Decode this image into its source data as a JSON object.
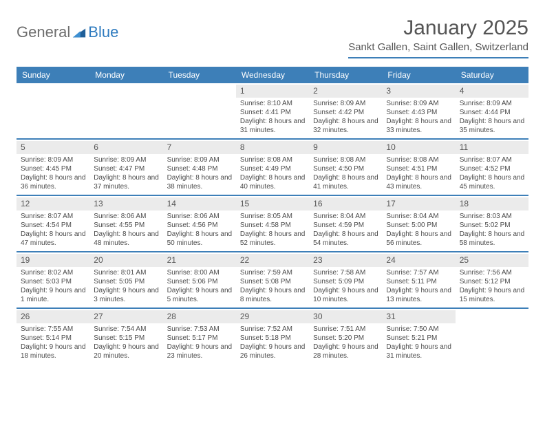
{
  "brand": {
    "part1": "General",
    "part2": "Blue"
  },
  "title": "January 2025",
  "location": "Sankt Gallen, Saint Gallen, Switzerland",
  "accent_color": "#3d7fb8",
  "day_bar_color": "#ebebeb",
  "bg_color": "#ffffff",
  "dow": [
    "Sunday",
    "Monday",
    "Tuesday",
    "Wednesday",
    "Thursday",
    "Friday",
    "Saturday"
  ],
  "weeks": [
    [
      null,
      null,
      null,
      {
        "n": "1",
        "sr": "8:10 AM",
        "ss": "4:41 PM",
        "dl": "8 hours and 31 minutes."
      },
      {
        "n": "2",
        "sr": "8:09 AM",
        "ss": "4:42 PM",
        "dl": "8 hours and 32 minutes."
      },
      {
        "n": "3",
        "sr": "8:09 AM",
        "ss": "4:43 PM",
        "dl": "8 hours and 33 minutes."
      },
      {
        "n": "4",
        "sr": "8:09 AM",
        "ss": "4:44 PM",
        "dl": "8 hours and 35 minutes."
      }
    ],
    [
      {
        "n": "5",
        "sr": "8:09 AM",
        "ss": "4:45 PM",
        "dl": "8 hours and 36 minutes."
      },
      {
        "n": "6",
        "sr": "8:09 AM",
        "ss": "4:47 PM",
        "dl": "8 hours and 37 minutes."
      },
      {
        "n": "7",
        "sr": "8:09 AM",
        "ss": "4:48 PM",
        "dl": "8 hours and 38 minutes."
      },
      {
        "n": "8",
        "sr": "8:08 AM",
        "ss": "4:49 PM",
        "dl": "8 hours and 40 minutes."
      },
      {
        "n": "9",
        "sr": "8:08 AM",
        "ss": "4:50 PM",
        "dl": "8 hours and 41 minutes."
      },
      {
        "n": "10",
        "sr": "8:08 AM",
        "ss": "4:51 PM",
        "dl": "8 hours and 43 minutes."
      },
      {
        "n": "11",
        "sr": "8:07 AM",
        "ss": "4:52 PM",
        "dl": "8 hours and 45 minutes."
      }
    ],
    [
      {
        "n": "12",
        "sr": "8:07 AM",
        "ss": "4:54 PM",
        "dl": "8 hours and 47 minutes."
      },
      {
        "n": "13",
        "sr": "8:06 AM",
        "ss": "4:55 PM",
        "dl": "8 hours and 48 minutes."
      },
      {
        "n": "14",
        "sr": "8:06 AM",
        "ss": "4:56 PM",
        "dl": "8 hours and 50 minutes."
      },
      {
        "n": "15",
        "sr": "8:05 AM",
        "ss": "4:58 PM",
        "dl": "8 hours and 52 minutes."
      },
      {
        "n": "16",
        "sr": "8:04 AM",
        "ss": "4:59 PM",
        "dl": "8 hours and 54 minutes."
      },
      {
        "n": "17",
        "sr": "8:04 AM",
        "ss": "5:00 PM",
        "dl": "8 hours and 56 minutes."
      },
      {
        "n": "18",
        "sr": "8:03 AM",
        "ss": "5:02 PM",
        "dl": "8 hours and 58 minutes."
      }
    ],
    [
      {
        "n": "19",
        "sr": "8:02 AM",
        "ss": "5:03 PM",
        "dl": "9 hours and 1 minute."
      },
      {
        "n": "20",
        "sr": "8:01 AM",
        "ss": "5:05 PM",
        "dl": "9 hours and 3 minutes."
      },
      {
        "n": "21",
        "sr": "8:00 AM",
        "ss": "5:06 PM",
        "dl": "9 hours and 5 minutes."
      },
      {
        "n": "22",
        "sr": "7:59 AM",
        "ss": "5:08 PM",
        "dl": "9 hours and 8 minutes."
      },
      {
        "n": "23",
        "sr": "7:58 AM",
        "ss": "5:09 PM",
        "dl": "9 hours and 10 minutes."
      },
      {
        "n": "24",
        "sr": "7:57 AM",
        "ss": "5:11 PM",
        "dl": "9 hours and 13 minutes."
      },
      {
        "n": "25",
        "sr": "7:56 AM",
        "ss": "5:12 PM",
        "dl": "9 hours and 15 minutes."
      }
    ],
    [
      {
        "n": "26",
        "sr": "7:55 AM",
        "ss": "5:14 PM",
        "dl": "9 hours and 18 minutes."
      },
      {
        "n": "27",
        "sr": "7:54 AM",
        "ss": "5:15 PM",
        "dl": "9 hours and 20 minutes."
      },
      {
        "n": "28",
        "sr": "7:53 AM",
        "ss": "5:17 PM",
        "dl": "9 hours and 23 minutes."
      },
      {
        "n": "29",
        "sr": "7:52 AM",
        "ss": "5:18 PM",
        "dl": "9 hours and 26 minutes."
      },
      {
        "n": "30",
        "sr": "7:51 AM",
        "ss": "5:20 PM",
        "dl": "9 hours and 28 minutes."
      },
      {
        "n": "31",
        "sr": "7:50 AM",
        "ss": "5:21 PM",
        "dl": "9 hours and 31 minutes."
      },
      null
    ]
  ],
  "labels": {
    "sunrise": "Sunrise:",
    "sunset": "Sunset:",
    "daylight": "Daylight:"
  }
}
